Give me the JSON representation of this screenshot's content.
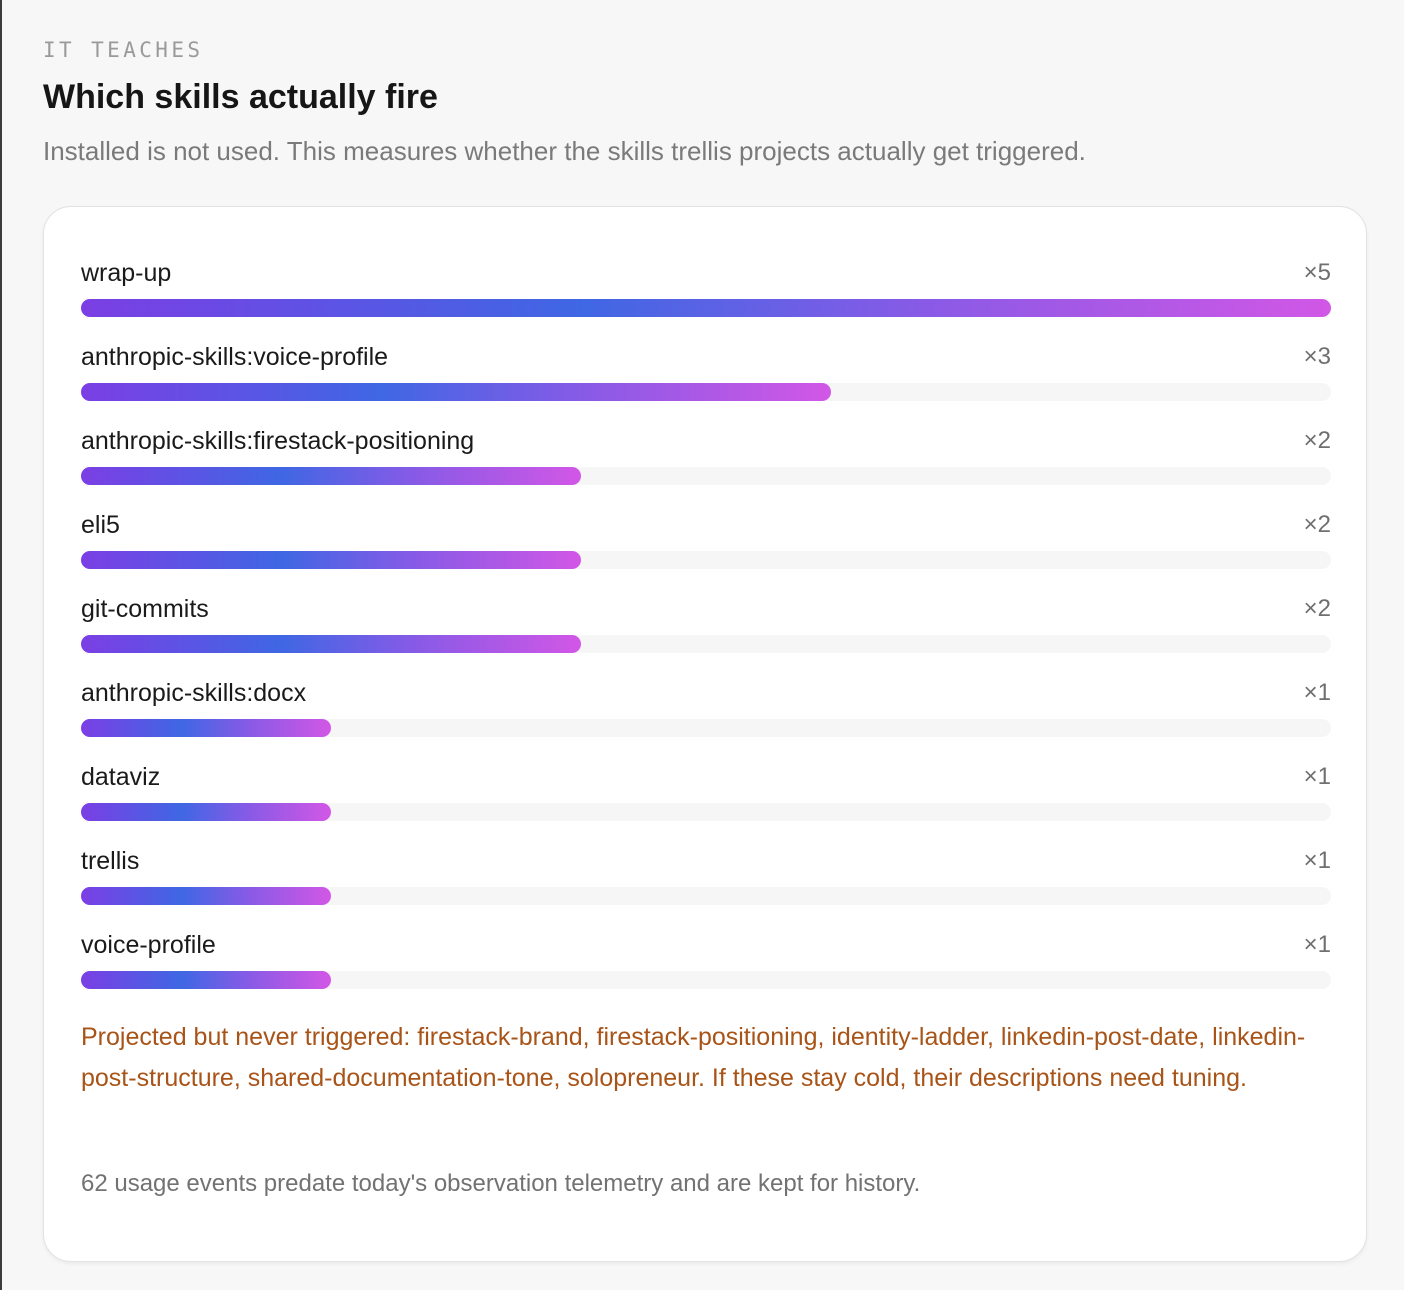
{
  "section": {
    "eyebrow": "IT TEACHES",
    "title": "Which skills actually fire",
    "subtitle": "Installed is not used. This measures whether the skills trellis projects actually get triggered."
  },
  "chart_data": {
    "type": "bar",
    "orientation": "horizontal",
    "categories": [
      "wrap-up",
      "anthropic-skills:voice-profile",
      "anthropic-skills:firestack-positioning",
      "eli5",
      "git-commits",
      "anthropic-skills:docx",
      "dataviz",
      "trellis",
      "voice-profile"
    ],
    "values": [
      5,
      3,
      2,
      2,
      2,
      1,
      1,
      1,
      1
    ],
    "value_labels": [
      "×5",
      "×3",
      "×2",
      "×2",
      "×2",
      "×1",
      "×1",
      "×1",
      "×1"
    ],
    "xlim": [
      0,
      5
    ],
    "grid": false,
    "bar_gradient": [
      "#7b3fe4",
      "#3f67e4",
      "#d257e6"
    ]
  },
  "notes": {
    "warning": "Projected but never triggered: firestack-brand, firestack-positioning, identity-ladder, linkedin-post-date, linkedin-post-structure, shared-documentation-tone, solopreneur. If these stay cold, their descriptions need tuning.",
    "footnote": "62 usage events predate today's observation telemetry and are kept for history."
  },
  "colors": {
    "warning_text": "#a85418",
    "track": "#f6f6f7",
    "card_background": "#ffffff",
    "page_background": "#f7f7f7"
  }
}
